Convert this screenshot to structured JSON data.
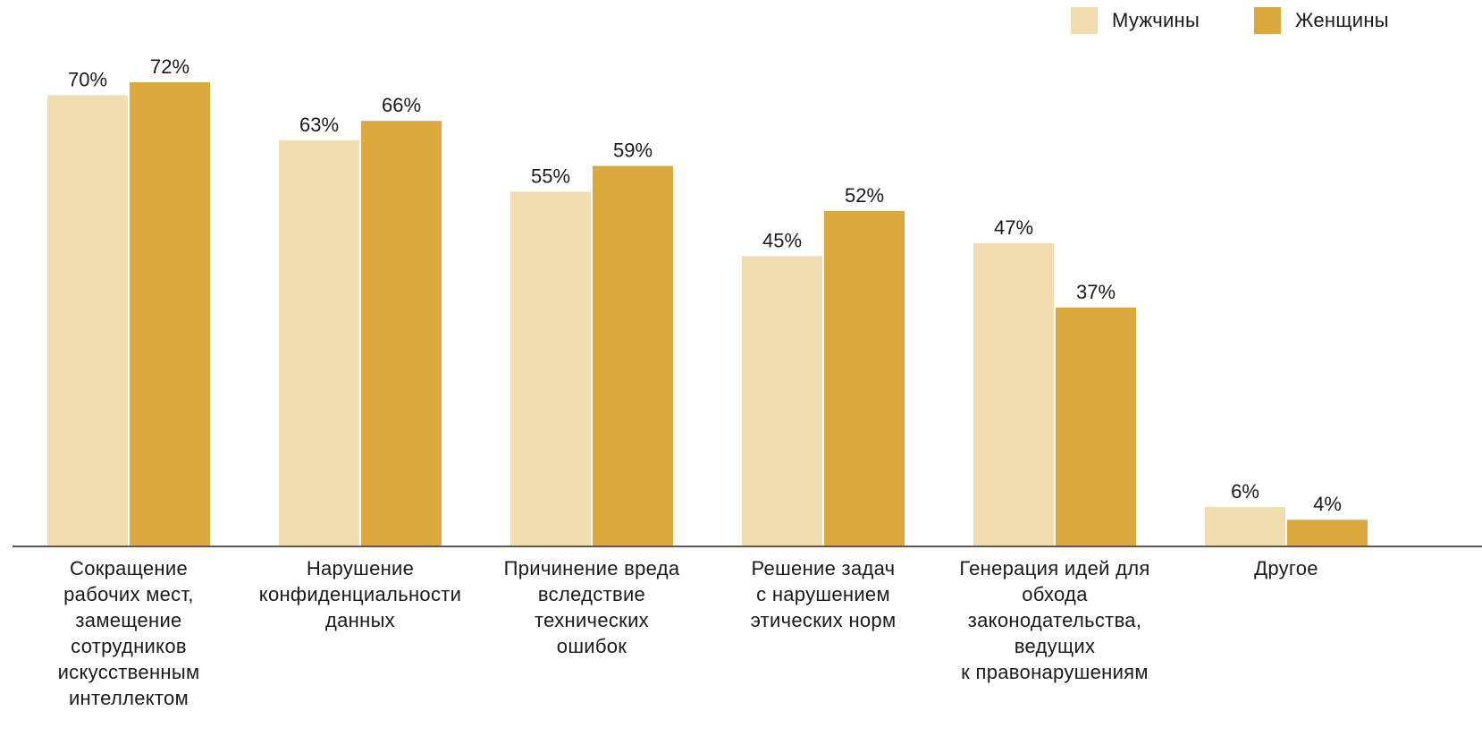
{
  "chart_data": {
    "type": "bar",
    "categories": [
      "Сокращение\nрабочих мест,\nзамещение\nсотрудников\nискусственным\nинтеллектом",
      "Нарушение\nконфиденциальности\nданных",
      "Причинение вреда\nвследствие\nтехнических\nошибок",
      "Решение задач\nс нарушением\nэтических норм",
      "Генерация идей для\nобхода\nзаконодательства,\nведущих\nк правонарушениям",
      "Другое"
    ],
    "series": [
      {
        "name": "Мужчины",
        "color": "#f2ddb1",
        "values": [
          70,
          63,
          55,
          45,
          47,
          6
        ],
        "labels": [
          "70%",
          "63%",
          "55%",
          "45%",
          "47%",
          "6%"
        ]
      },
      {
        "name": "Женщины",
        "color": "#dba93d",
        "values": [
          72,
          66,
          59,
          52,
          37,
          4
        ],
        "labels": [
          "72%",
          "66%",
          "59%",
          "52%",
          "37%",
          "4%"
        ]
      }
    ],
    "ylim": [
      0,
      72
    ],
    "grid": false,
    "legend": "top-right"
  }
}
